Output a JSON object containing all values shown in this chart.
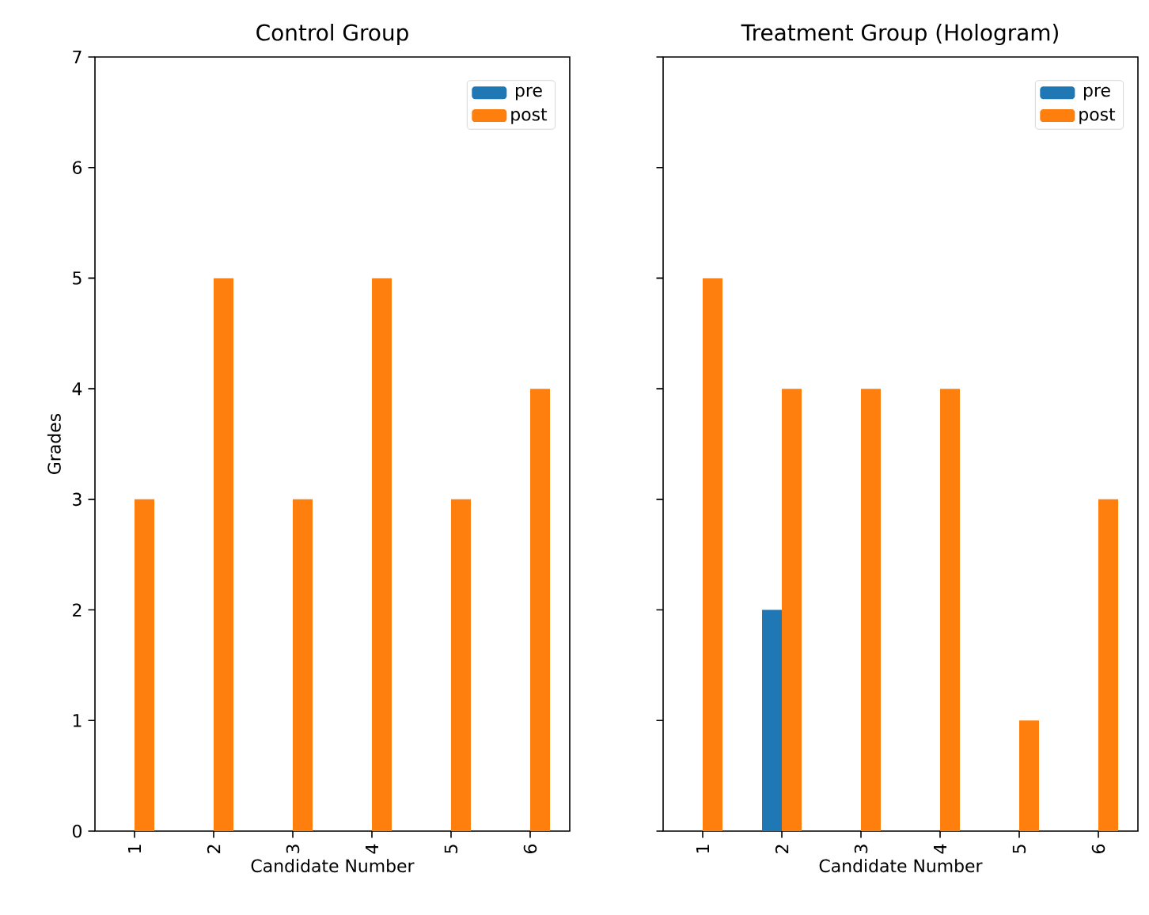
{
  "chart_data": [
    {
      "type": "bar",
      "title": "Control Group",
      "xlabel": "Candidate Number",
      "ylabel": "Grades",
      "categories": [
        "1",
        "2",
        "3",
        "4",
        "5",
        "6"
      ],
      "series": [
        {
          "name": "pre",
          "color": "#1f77b4",
          "values": [
            0,
            0,
            0,
            0,
            0,
            0
          ]
        },
        {
          "name": "post",
          "color": "#ff7f0e",
          "values": [
            3,
            5,
            3,
            5,
            3,
            4
          ]
        }
      ],
      "ylim": [
        0,
        7
      ],
      "yticks": [
        0,
        1,
        2,
        3,
        4,
        5,
        6,
        7
      ],
      "legend": "top right",
      "grid": false
    },
    {
      "type": "bar",
      "title": "Treatment Group (Hologram)",
      "xlabel": "Candidate Number",
      "categories": [
        "1",
        "2",
        "3",
        "4",
        "5",
        "6"
      ],
      "series": [
        {
          "name": "pre",
          "color": "#1f77b4",
          "values": [
            0,
            2,
            0,
            0,
            0,
            0
          ]
        },
        {
          "name": "post",
          "color": "#ff7f0e",
          "values": [
            5,
            4,
            4,
            4,
            1,
            3
          ]
        }
      ],
      "ylim": [
        0,
        7
      ],
      "yticks": [
        0,
        1,
        2,
        3,
        4,
        5,
        6,
        7
      ],
      "legend": "top right",
      "grid": false,
      "tick_labels": "x"
    }
  ]
}
